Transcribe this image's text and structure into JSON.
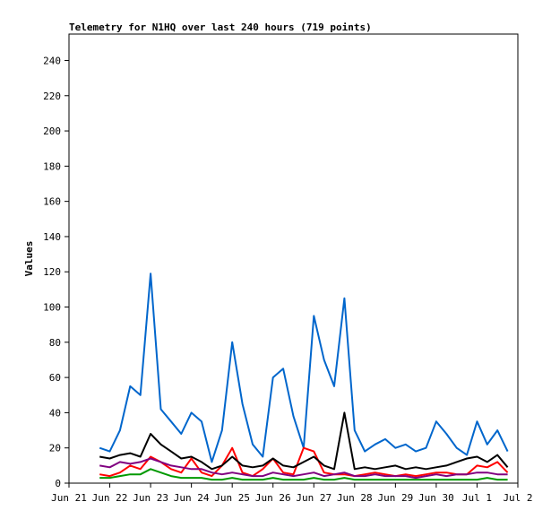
{
  "chart_data": {
    "type": "line",
    "title": "Telemetry for N1HQ over last 240 hours (719 points)",
    "xlabel": "",
    "ylabel": "Values",
    "ylim": [
      0,
      255
    ],
    "xlim": [
      "2025-06-21T00:00",
      "2025-07-02T00:00"
    ],
    "yticks": [
      0,
      20,
      40,
      60,
      80,
      100,
      120,
      140,
      160,
      180,
      200,
      220,
      240
    ],
    "xticks": [
      {
        "x": "2025-06-21T00:00",
        "label": "Jun 21"
      },
      {
        "x": "2025-06-22T00:00",
        "label": "Jun 22"
      },
      {
        "x": "2025-06-23T00:00",
        "label": "Jun 23"
      },
      {
        "x": "2025-06-24T00:00",
        "label": "Jun 24"
      },
      {
        "x": "2025-06-25T00:00",
        "label": "Jun 25"
      },
      {
        "x": "2025-06-26T00:00",
        "label": "Jun 26"
      },
      {
        "x": "2025-06-27T00:00",
        "label": "Jun 27"
      },
      {
        "x": "2025-06-28T00:00",
        "label": "Jun 28"
      },
      {
        "x": "2025-06-29T00:00",
        "label": "Jun 29"
      },
      {
        "x": "2025-06-30T00:00",
        "label": "Jun 30"
      },
      {
        "x": "2025-07-01T00:00",
        "label": "Jul 1"
      },
      {
        "x": "2025-07-02T00:00",
        "label": "Jul 2"
      }
    ],
    "grid": false,
    "legend": "none",
    "x": [
      "2025-06-21T18:00",
      "2025-06-22T00:00",
      "2025-06-22T06:00",
      "2025-06-22T12:00",
      "2025-06-22T18:00",
      "2025-06-23T00:00",
      "2025-06-23T06:00",
      "2025-06-23T12:00",
      "2025-06-23T18:00",
      "2025-06-24T00:00",
      "2025-06-24T06:00",
      "2025-06-24T12:00",
      "2025-06-24T18:00",
      "2025-06-25T00:00",
      "2025-06-25T06:00",
      "2025-06-25T12:00",
      "2025-06-25T18:00",
      "2025-06-26T00:00",
      "2025-06-26T06:00",
      "2025-06-26T12:00",
      "2025-06-26T18:00",
      "2025-06-27T00:00",
      "2025-06-27T06:00",
      "2025-06-27T12:00",
      "2025-06-27T18:00",
      "2025-06-28T00:00",
      "2025-06-28T06:00",
      "2025-06-28T12:00",
      "2025-06-28T18:00",
      "2025-06-29T00:00",
      "2025-06-29T06:00",
      "2025-06-29T12:00",
      "2025-06-29T18:00",
      "2025-06-30T00:00",
      "2025-06-30T06:00",
      "2025-06-30T12:00",
      "2025-06-30T18:00",
      "2025-07-01T00:00",
      "2025-07-01T06:00",
      "2025-07-01T12:00",
      "2025-07-01T18:00"
    ],
    "series": [
      {
        "color": "#0066cc",
        "values": [
          20,
          18,
          30,
          55,
          50,
          119,
          42,
          35,
          28,
          40,
          35,
          12,
          30,
          80,
          45,
          22,
          15,
          60,
          65,
          38,
          20,
          95,
          70,
          55,
          105,
          30,
          18,
          22,
          25,
          20,
          22,
          18,
          20,
          35,
          28,
          20,
          16,
          35,
          22,
          30,
          18
        ]
      },
      {
        "color": "#ff0000",
        "values": [
          5,
          4,
          6,
          10,
          8,
          15,
          12,
          8,
          6,
          14,
          6,
          4,
          10,
          20,
          6,
          4,
          8,
          14,
          6,
          5,
          20,
          18,
          6,
          5,
          5,
          4,
          5,
          6,
          5,
          4,
          5,
          4,
          5,
          6,
          6,
          5,
          5,
          10,
          9,
          12,
          6
        ]
      },
      {
        "color": "#000000",
        "values": [
          15,
          14,
          16,
          17,
          15,
          28,
          22,
          18,
          14,
          15,
          12,
          8,
          10,
          15,
          10,
          9,
          10,
          14,
          10,
          9,
          12,
          15,
          10,
          8,
          40,
          8,
          9,
          8,
          9,
          10,
          8,
          9,
          8,
          9,
          10,
          12,
          14,
          15,
          12,
          16,
          9
        ]
      },
      {
        "color": "#800080",
        "values": [
          10,
          9,
          12,
          11,
          12,
          14,
          12,
          10,
          9,
          8,
          8,
          6,
          5,
          6,
          5,
          4,
          4,
          6,
          5,
          4,
          5,
          6,
          4,
          5,
          6,
          4,
          4,
          5,
          4,
          4,
          4,
          3,
          4,
          5,
          4,
          5,
          5,
          6,
          6,
          5,
          5
        ]
      },
      {
        "color": "#009900",
        "values": [
          3,
          3,
          4,
          5,
          5,
          8,
          6,
          4,
          3,
          3,
          3,
          2,
          2,
          3,
          2,
          2,
          2,
          3,
          2,
          2,
          2,
          3,
          2,
          2,
          3,
          2,
          2,
          2,
          2,
          2,
          2,
          2,
          2,
          2,
          2,
          2,
          2,
          2,
          3,
          2,
          2
        ]
      }
    ]
  }
}
